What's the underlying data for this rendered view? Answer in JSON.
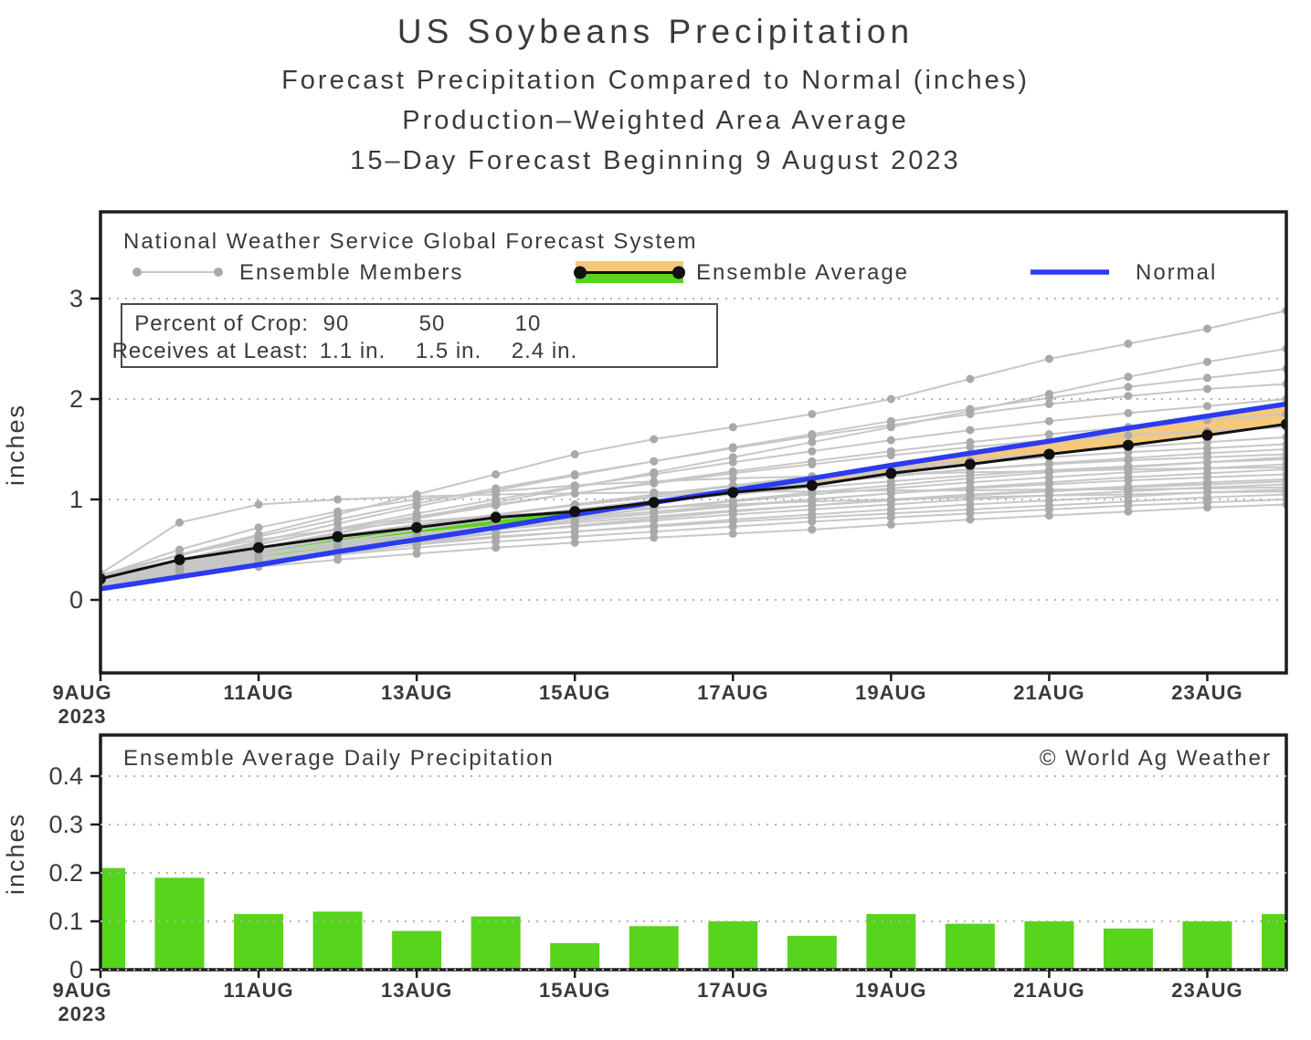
{
  "page_titles": {
    "line1": "US Soybeans Precipitation",
    "line2": "Forecast Precipitation Compared to Normal (inches)",
    "line3": "Production–Weighted Area Average",
    "line4": "15–Day Forecast Beginning 9 August 2023"
  },
  "colors": {
    "text": "#3a3a3a",
    "axis": "#1c1c1c",
    "grid": "#b3b3b3",
    "member_line": "#c7c7c7",
    "member_dot": "#a9a9a9",
    "average_line": "#111111",
    "normal_line": "#2b3bf0",
    "above_normal_band": "#57d41c",
    "below_normal_band": "#f5c87d",
    "bar_fill": "#57d41c"
  },
  "top_chart": {
    "header": "National Weather Service Global Forecast System",
    "legend": {
      "members_label": "Ensemble Members",
      "average_label": "Ensemble Average",
      "normal_label": "Normal"
    },
    "info_box": {
      "row1_label": "Percent of Crop:",
      "row2_label": "Receives at Least:",
      "cols": [
        {
          "pct": "90",
          "amount": "1.1 in."
        },
        {
          "pct": "50",
          "amount": "1.5 in."
        },
        {
          "pct": "10",
          "amount": "2.4 in."
        }
      ]
    },
    "ylabel": "inches",
    "year_label": "2023"
  },
  "bottom_chart": {
    "header": "Ensemble Average Daily Precipitation",
    "watermark": "© World Ag Weather",
    "ylabel": "inches",
    "year_label": "2023"
  },
  "chart_data": [
    {
      "type": "line",
      "title": "Forecast cumulative precipitation compared to normal (inches)",
      "x": [
        "9AUG",
        "10AUG",
        "11AUG",
        "12AUG",
        "13AUG",
        "14AUG",
        "15AUG",
        "16AUG",
        "17AUG",
        "18AUG",
        "19AUG",
        "20AUG",
        "21AUG",
        "22AUG",
        "23AUG",
        "24AUG"
      ],
      "xtick_labels": [
        "9AUG",
        "11AUG",
        "13AUG",
        "15AUG",
        "17AUG",
        "19AUG",
        "21AUG",
        "23AUG"
      ],
      "ylabel": "inches",
      "yticks": [
        0,
        1,
        2,
        3
      ],
      "ylim": [
        -0.73,
        3.86
      ],
      "grid": "dotted-horizontal",
      "legend_position": "top-inside",
      "series": [
        {
          "name": "Ensemble Average",
          "values": [
            0.21,
            0.4,
            0.52,
            0.63,
            0.72,
            0.82,
            0.88,
            0.97,
            1.07,
            1.14,
            1.26,
            1.35,
            1.45,
            1.54,
            1.64,
            1.75
          ]
        },
        {
          "name": "Normal",
          "values": [
            0.11,
            0.23,
            0.35,
            0.48,
            0.6,
            0.72,
            0.85,
            0.97,
            1.09,
            1.21,
            1.34,
            1.46,
            1.58,
            1.71,
            1.83,
            1.95
          ]
        }
      ],
      "ensemble_members": [
        [
          0.15,
          0.25,
          0.33,
          0.4,
          0.46,
          0.52,
          0.57,
          0.62,
          0.66,
          0.7,
          0.75,
          0.8,
          0.84,
          0.88,
          0.92,
          0.95
        ],
        [
          0.18,
          0.3,
          0.38,
          0.45,
          0.52,
          0.58,
          0.63,
          0.68,
          0.73,
          0.78,
          0.82,
          0.86,
          0.9,
          0.94,
          0.97,
          1.0
        ],
        [
          0.14,
          0.28,
          0.4,
          0.5,
          0.57,
          0.63,
          0.68,
          0.73,
          0.78,
          0.82,
          0.86,
          0.9,
          0.94,
          0.98,
          1.02,
          1.05
        ],
        [
          0.22,
          0.45,
          0.6,
          0.7,
          0.78,
          0.84,
          0.88,
          0.92,
          0.95,
          0.98,
          1.0,
          1.02,
          1.04,
          1.05,
          1.07,
          1.08
        ],
        [
          0.16,
          0.26,
          0.36,
          0.46,
          0.55,
          0.62,
          0.68,
          0.74,
          0.8,
          0.85,
          0.9,
          0.95,
          0.99,
          1.03,
          1.07,
          1.1
        ],
        [
          0.26,
          0.77,
          0.95,
          1.0,
          1.03,
          1.05,
          1.06,
          1.07,
          1.08,
          1.08,
          1.09,
          1.09,
          1.1,
          1.1,
          1.11,
          1.12
        ],
        [
          0.17,
          0.3,
          0.42,
          0.52,
          0.6,
          0.67,
          0.73,
          0.79,
          0.85,
          0.9,
          0.95,
          1.0,
          1.04,
          1.08,
          1.12,
          1.15
        ],
        [
          0.2,
          0.34,
          0.45,
          0.54,
          0.62,
          0.7,
          0.77,
          0.83,
          0.89,
          0.94,
          0.99,
          1.04,
          1.08,
          1.12,
          1.15,
          1.18
        ],
        [
          0.15,
          0.27,
          0.38,
          0.48,
          0.58,
          0.66,
          0.74,
          0.81,
          0.88,
          0.94,
          1.0,
          1.05,
          1.09,
          1.13,
          1.17,
          1.2
        ],
        [
          0.19,
          0.33,
          0.46,
          0.57,
          0.66,
          0.74,
          0.81,
          0.88,
          0.94,
          1.0,
          1.06,
          1.11,
          1.15,
          1.19,
          1.22,
          1.25
        ],
        [
          0.16,
          0.29,
          0.41,
          0.52,
          0.62,
          0.71,
          0.79,
          0.86,
          0.93,
          1.0,
          1.06,
          1.12,
          1.17,
          1.22,
          1.26,
          1.3
        ],
        [
          0.24,
          0.5,
          0.72,
          0.88,
          1.0,
          1.08,
          1.14,
          1.18,
          1.21,
          1.23,
          1.25,
          1.27,
          1.28,
          1.3,
          1.31,
          1.32
        ],
        [
          0.18,
          0.31,
          0.44,
          0.55,
          0.65,
          0.74,
          0.83,
          0.91,
          0.98,
          1.05,
          1.11,
          1.17,
          1.22,
          1.27,
          1.31,
          1.35
        ],
        [
          0.21,
          0.36,
          0.5,
          0.62,
          0.72,
          0.82,
          0.9,
          0.98,
          1.05,
          1.12,
          1.18,
          1.24,
          1.29,
          1.33,
          1.37,
          1.4
        ],
        [
          0.15,
          0.28,
          0.4,
          0.52,
          0.63,
          0.73,
          0.82,
          0.91,
          0.99,
          1.07,
          1.14,
          1.21,
          1.27,
          1.32,
          1.37,
          1.42
        ],
        [
          0.22,
          0.38,
          0.52,
          0.64,
          0.75,
          0.85,
          0.94,
          1.02,
          1.1,
          1.17,
          1.24,
          1.3,
          1.35,
          1.39,
          1.42,
          1.45
        ],
        [
          0.17,
          0.32,
          0.46,
          0.58,
          0.7,
          0.8,
          0.9,
          0.99,
          1.08,
          1.16,
          1.23,
          1.3,
          1.36,
          1.41,
          1.46,
          1.5
        ],
        [
          0.2,
          0.35,
          0.49,
          0.62,
          0.74,
          0.85,
          0.95,
          1.04,
          1.13,
          1.21,
          1.29,
          1.36,
          1.42,
          1.47,
          1.51,
          1.55
        ],
        [
          0.18,
          0.33,
          0.48,
          0.61,
          0.73,
          0.84,
          0.95,
          1.05,
          1.14,
          1.23,
          1.31,
          1.39,
          1.46,
          1.52,
          1.57,
          1.62
        ],
        [
          0.23,
          0.4,
          0.56,
          0.7,
          0.83,
          0.95,
          1.06,
          1.16,
          1.26,
          1.35,
          1.44,
          1.52,
          1.59,
          1.64,
          1.68,
          1.72
        ],
        [
          0.19,
          0.36,
          0.52,
          0.67,
          0.81,
          0.94,
          1.06,
          1.17,
          1.28,
          1.38,
          1.48,
          1.57,
          1.65,
          1.72,
          1.79,
          1.85
        ],
        [
          0.21,
          0.38,
          0.55,
          0.71,
          0.86,
          1.0,
          1.13,
          1.25,
          1.37,
          1.48,
          1.59,
          1.69,
          1.78,
          1.86,
          1.93,
          2.0
        ],
        [
          0.24,
          0.44,
          0.63,
          0.8,
          0.96,
          1.11,
          1.25,
          1.38,
          1.51,
          1.63,
          1.74,
          1.85,
          1.95,
          2.03,
          2.1,
          2.15
        ],
        [
          0.2,
          0.4,
          0.58,
          0.76,
          0.93,
          1.09,
          1.24,
          1.38,
          1.52,
          1.65,
          1.78,
          1.9,
          2.01,
          2.12,
          2.21,
          2.3
        ],
        [
          0.18,
          0.34,
          0.5,
          0.66,
          0.82,
          0.97,
          1.12,
          1.27,
          1.42,
          1.57,
          1.72,
          1.88,
          2.05,
          2.22,
          2.37,
          2.5
        ],
        [
          0.25,
          0.45,
          0.65,
          0.85,
          1.05,
          1.25,
          1.45,
          1.6,
          1.72,
          1.85,
          2.0,
          2.2,
          2.4,
          2.55,
          2.7,
          2.88
        ]
      ]
    },
    {
      "type": "bar",
      "title": "Ensemble Average Daily Precipitation",
      "categories": [
        "9AUG",
        "10AUG",
        "11AUG",
        "12AUG",
        "13AUG",
        "14AUG",
        "15AUG",
        "16AUG",
        "17AUG",
        "18AUG",
        "19AUG",
        "20AUG",
        "21AUG",
        "22AUG",
        "23AUG",
        "24AUG"
      ],
      "xtick_labels": [
        "9AUG",
        "11AUG",
        "13AUG",
        "15AUG",
        "17AUG",
        "19AUG",
        "21AUG",
        "23AUG"
      ],
      "values": [
        0.21,
        0.19,
        0.115,
        0.12,
        0.08,
        0.11,
        0.055,
        0.09,
        0.1,
        0.07,
        0.115,
        0.095,
        0.1,
        0.085,
        0.1,
        0.115
      ],
      "ylabel": "inches",
      "yticks": [
        0,
        0.1,
        0.2,
        0.3,
        0.4
      ],
      "ylim": [
        0,
        0.485
      ],
      "grid": "dotted-horizontal"
    }
  ]
}
